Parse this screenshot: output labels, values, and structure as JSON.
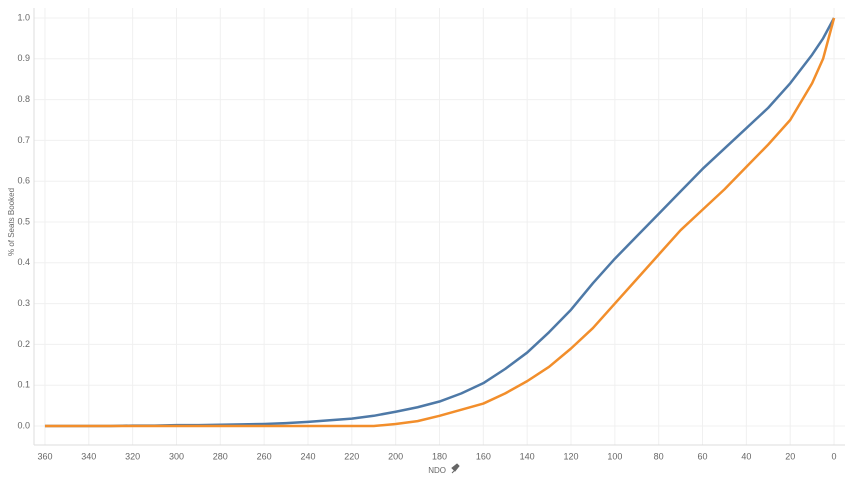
{
  "chart_data": {
    "type": "line",
    "x_label": "NDO",
    "y_label": "% of Seats Booked",
    "x": [
      360,
      350,
      340,
      330,
      320,
      310,
      300,
      290,
      280,
      270,
      260,
      250,
      240,
      230,
      220,
      210,
      200,
      190,
      180,
      170,
      160,
      150,
      140,
      130,
      120,
      110,
      100,
      90,
      80,
      70,
      60,
      50,
      40,
      30,
      20,
      10,
      5,
      0
    ],
    "series": [
      {
        "color": "#4e79a7",
        "values": [
          0,
          0,
          0,
          0,
          0.001,
          0.001,
          0.002,
          0.002,
          0.003,
          0.004,
          0.005,
          0.007,
          0.01,
          0.014,
          0.018,
          0.025,
          0.035,
          0.046,
          0.06,
          0.08,
          0.105,
          0.14,
          0.18,
          0.23,
          0.285,
          0.35,
          0.41,
          0.465,
          0.52,
          0.575,
          0.63,
          0.68,
          0.73,
          0.78,
          0.84,
          0.91,
          0.95,
          1.0
        ]
      },
      {
        "color": "#f28e2b",
        "values": [
          0,
          0,
          0,
          0,
          0,
          0,
          0,
          0,
          0,
          0,
          0,
          0,
          0,
          0,
          0,
          0,
          0.005,
          0.012,
          0.025,
          0.04,
          0.055,
          0.08,
          0.11,
          0.145,
          0.19,
          0.24,
          0.3,
          0.36,
          0.42,
          0.48,
          0.53,
          0.58,
          0.635,
          0.69,
          0.75,
          0.84,
          0.9,
          1.0
        ]
      }
    ],
    "xlim": [
      365,
      -5
    ],
    "xticks": [
      360,
      340,
      320,
      300,
      280,
      260,
      240,
      220,
      200,
      180,
      160,
      140,
      120,
      100,
      80,
      60,
      40,
      20,
      0
    ],
    "ylim": [
      0,
      1
    ],
    "yticks": [
      {
        "value": 0,
        "label": "0.0"
      },
      0.1,
      0.2,
      0.3,
      0.4,
      0.5,
      0.6,
      0.7,
      0.8,
      0.9,
      {
        "value": 1,
        "label": "1.0"
      }
    ],
    "grid": true
  }
}
